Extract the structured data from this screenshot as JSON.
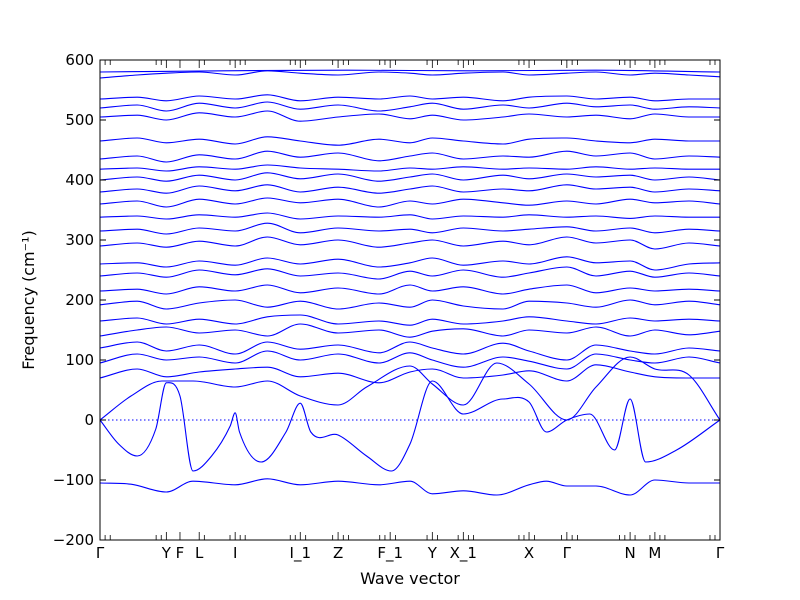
{
  "chart_data": {
    "type": "line",
    "title": "",
    "xlabel": "Wave vector",
    "ylabel": "Frequency (cm⁻¹)",
    "ylim": [
      -200,
      600
    ],
    "yticks": [
      -200,
      -100,
      0,
      100,
      200,
      300,
      400,
      500,
      600
    ],
    "grid": false,
    "legend": "none",
    "colors": {
      "band": "#0000ff",
      "zero_line": "#0000ff",
      "axes": "#000000"
    },
    "xlim": [
      0,
      1
    ],
    "high_symmetry_points": [
      {
        "label": "Γ",
        "x": 0.0
      },
      {
        "label": "Y",
        "x": 0.107
      },
      {
        "label": "F",
        "x": 0.129
      },
      {
        "label": "L",
        "x": 0.16
      },
      {
        "label": "I",
        "x": 0.218
      },
      {
        "label": "I_1",
        "x": 0.323
      },
      {
        "label": "Z",
        "x": 0.384
      },
      {
        "label": "F_1",
        "x": 0.468
      },
      {
        "label": "Y",
        "x": 0.536
      },
      {
        "label": "X_1",
        "x": 0.586
      },
      {
        "label": "X",
        "x": 0.692
      },
      {
        "label": "Γ",
        "x": 0.753
      },
      {
        "label": "N",
        "x": 0.855
      },
      {
        "label": "M",
        "x": 0.895
      },
      {
        "label": "Γ",
        "x": 1.0
      }
    ],
    "series": [
      {
        "x": [
          0,
          0.05,
          0.107,
          0.15,
          0.218,
          0.27,
          0.323,
          0.384,
          0.45,
          0.5,
          0.536,
          0.586,
          0.64,
          0.692,
          0.72,
          0.753,
          0.8,
          0.855,
          0.895,
          0.95,
          1.0
        ],
        "values": [
          -105,
          -107,
          -120,
          -102,
          -108,
          -98,
          -108,
          -102,
          -108,
          -102,
          -123,
          -118,
          -125,
          -108,
          -102,
          -110,
          -110,
          -125,
          -100,
          -105,
          -105
        ]
      },
      {
        "x": [
          0,
          0.03,
          0.06,
          0.09,
          0.107,
          0.129,
          0.15,
          0.18,
          0.21,
          0.218,
          0.225,
          0.26,
          0.3,
          0.323,
          0.34,
          0.384,
          0.43,
          0.47,
          0.5,
          0.536,
          0.586,
          0.65,
          0.692,
          0.72,
          0.753,
          0.79,
          0.83,
          0.855,
          0.88,
          0.93,
          1.0
        ],
        "values": [
          0,
          -40,
          -60,
          -15,
          62,
          40,
          -85,
          -60,
          -10,
          12,
          -20,
          -70,
          -20,
          28,
          -20,
          -25,
          -60,
          -85,
          -40,
          65,
          10,
          35,
          30,
          -20,
          0,
          10,
          -50,
          35,
          -70,
          -50,
          0
        ]
      },
      {
        "x": [
          0,
          0.05,
          0.1,
          0.15,
          0.218,
          0.27,
          0.323,
          0.384,
          0.43,
          0.5,
          0.536,
          0.586,
          0.64,
          0.692,
          0.753,
          0.8,
          0.855,
          0.895,
          0.95,
          1.0
        ],
        "values": [
          0,
          40,
          65,
          65,
          55,
          65,
          40,
          25,
          55,
          90,
          60,
          25,
          95,
          60,
          0,
          55,
          105,
          85,
          75,
          0
        ]
      },
      {
        "x": [
          0,
          0.06,
          0.107,
          0.16,
          0.218,
          0.27,
          0.323,
          0.384,
          0.45,
          0.5,
          0.536,
          0.586,
          0.65,
          0.692,
          0.753,
          0.8,
          0.855,
          0.895,
          0.95,
          1.0
        ],
        "values": [
          70,
          85,
          72,
          80,
          85,
          88,
          72,
          78,
          62,
          80,
          85,
          70,
          75,
          82,
          65,
          92,
          80,
          72,
          70,
          70
        ]
      },
      {
        "x": [
          0,
          0.06,
          0.107,
          0.16,
          0.218,
          0.27,
          0.323,
          0.384,
          0.45,
          0.5,
          0.536,
          0.586,
          0.65,
          0.692,
          0.753,
          0.8,
          0.855,
          0.895,
          0.95,
          1.0
        ],
        "values": [
          95,
          110,
          100,
          105,
          95,
          115,
          100,
          110,
          95,
          112,
          100,
          88,
          105,
          98,
          85,
          110,
          100,
          95,
          105,
          95
        ]
      },
      {
        "x": [
          0,
          0.06,
          0.107,
          0.16,
          0.218,
          0.27,
          0.323,
          0.384,
          0.45,
          0.5,
          0.536,
          0.586,
          0.65,
          0.692,
          0.753,
          0.8,
          0.855,
          0.895,
          0.95,
          1.0
        ],
        "values": [
          120,
          130,
          115,
          125,
          110,
          130,
          118,
          125,
          112,
          130,
          120,
          110,
          128,
          115,
          100,
          125,
          115,
          110,
          120,
          115
        ]
      },
      {
        "x": [
          0,
          0.06,
          0.107,
          0.16,
          0.218,
          0.27,
          0.323,
          0.384,
          0.45,
          0.5,
          0.536,
          0.586,
          0.65,
          0.692,
          0.753,
          0.8,
          0.855,
          0.895,
          0.95,
          1.0
        ],
        "values": [
          140,
          150,
          155,
          145,
          150,
          140,
          160,
          145,
          150,
          138,
          148,
          152,
          140,
          150,
          145,
          155,
          140,
          150,
          142,
          148
        ]
      },
      {
        "x": [
          0,
          0.06,
          0.107,
          0.16,
          0.218,
          0.27,
          0.323,
          0.384,
          0.45,
          0.5,
          0.536,
          0.586,
          0.65,
          0.692,
          0.753,
          0.8,
          0.855,
          0.895,
          0.95,
          1.0
        ],
        "values": [
          165,
          170,
          160,
          168,
          160,
          172,
          175,
          160,
          165,
          158,
          168,
          160,
          165,
          172,
          165,
          160,
          170,
          165,
          168,
          165
        ]
      },
      {
        "x": [
          0,
          0.06,
          0.107,
          0.16,
          0.218,
          0.27,
          0.323,
          0.384,
          0.45,
          0.5,
          0.536,
          0.586,
          0.65,
          0.692,
          0.753,
          0.8,
          0.855,
          0.895,
          0.95,
          1.0
        ],
        "values": [
          192,
          198,
          185,
          195,
          200,
          188,
          198,
          185,
          195,
          188,
          200,
          190,
          185,
          198,
          195,
          188,
          200,
          192,
          198,
          192
        ]
      },
      {
        "x": [
          0,
          0.06,
          0.107,
          0.16,
          0.218,
          0.27,
          0.323,
          0.384,
          0.45,
          0.5,
          0.536,
          0.586,
          0.65,
          0.692,
          0.753,
          0.8,
          0.855,
          0.895,
          0.95,
          1.0
        ],
        "values": [
          215,
          218,
          210,
          222,
          215,
          225,
          212,
          220,
          210,
          225,
          215,
          222,
          210,
          218,
          225,
          212,
          220,
          215,
          218,
          215
        ]
      },
      {
        "x": [
          0,
          0.06,
          0.107,
          0.16,
          0.218,
          0.27,
          0.323,
          0.384,
          0.45,
          0.5,
          0.536,
          0.586,
          0.65,
          0.692,
          0.753,
          0.8,
          0.855,
          0.895,
          0.95,
          1.0
        ],
        "values": [
          240,
          245,
          238,
          250,
          242,
          252,
          240,
          245,
          235,
          248,
          240,
          250,
          238,
          245,
          255,
          240,
          248,
          238,
          245,
          240
        ]
      },
      {
        "x": [
          0,
          0.06,
          0.107,
          0.16,
          0.218,
          0.27,
          0.323,
          0.384,
          0.45,
          0.5,
          0.536,
          0.586,
          0.65,
          0.692,
          0.753,
          0.8,
          0.855,
          0.895,
          0.95,
          1.0
        ],
        "values": [
          260,
          262,
          255,
          265,
          258,
          270,
          260,
          268,
          255,
          262,
          270,
          258,
          265,
          260,
          272,
          262,
          265,
          250,
          260,
          262
        ]
      },
      {
        "x": [
          0,
          0.06,
          0.107,
          0.16,
          0.218,
          0.27,
          0.323,
          0.384,
          0.45,
          0.5,
          0.536,
          0.586,
          0.65,
          0.692,
          0.753,
          0.8,
          0.855,
          0.895,
          0.95,
          1.0
        ],
        "values": [
          290,
          295,
          288,
          298,
          290,
          305,
          292,
          300,
          288,
          295,
          300,
          290,
          298,
          292,
          305,
          295,
          300,
          285,
          295,
          290
        ]
      },
      {
        "x": [
          0,
          0.06,
          0.107,
          0.16,
          0.218,
          0.27,
          0.323,
          0.384,
          0.45,
          0.5,
          0.536,
          0.586,
          0.65,
          0.692,
          0.753,
          0.8,
          0.855,
          0.895,
          0.95,
          1.0
        ],
        "values": [
          315,
          318,
          310,
          320,
          315,
          328,
          312,
          320,
          315,
          318,
          312,
          320,
          315,
          318,
          322,
          315,
          320,
          312,
          318,
          315
        ]
      },
      {
        "x": [
          0,
          0.06,
          0.107,
          0.16,
          0.218,
          0.27,
          0.323,
          0.384,
          0.45,
          0.5,
          0.536,
          0.586,
          0.65,
          0.692,
          0.753,
          0.8,
          0.855,
          0.895,
          0.95,
          1.0
        ],
        "values": [
          338,
          340,
          335,
          342,
          338,
          345,
          335,
          340,
          338,
          342,
          335,
          340,
          338,
          342,
          338,
          340,
          336,
          340,
          338,
          338
        ]
      },
      {
        "x": [
          0,
          0.06,
          0.107,
          0.16,
          0.218,
          0.27,
          0.323,
          0.384,
          0.45,
          0.5,
          0.536,
          0.586,
          0.65,
          0.692,
          0.753,
          0.8,
          0.855,
          0.895,
          0.95,
          1.0
        ],
        "values": [
          360,
          365,
          355,
          368,
          360,
          370,
          362,
          368,
          355,
          365,
          360,
          368,
          362,
          358,
          365,
          360,
          368,
          362,
          365,
          360
        ]
      },
      {
        "x": [
          0,
          0.06,
          0.107,
          0.16,
          0.218,
          0.27,
          0.323,
          0.384,
          0.45,
          0.5,
          0.536,
          0.586,
          0.65,
          0.692,
          0.753,
          0.8,
          0.855,
          0.895,
          0.95,
          1.0
        ],
        "values": [
          380,
          385,
          378,
          390,
          382,
          392,
          380,
          388,
          378,
          385,
          390,
          380,
          385,
          382,
          392,
          385,
          388,
          380,
          385,
          382
        ]
      },
      {
        "x": [
          0,
          0.06,
          0.107,
          0.16,
          0.218,
          0.27,
          0.323,
          0.384,
          0.45,
          0.5,
          0.536,
          0.586,
          0.65,
          0.692,
          0.753,
          0.8,
          0.855,
          0.895,
          0.95,
          1.0
        ],
        "values": [
          400,
          405,
          398,
          408,
          400,
          412,
          402,
          410,
          398,
          405,
          410,
          400,
          408,
          402,
          410,
          405,
          408,
          400,
          405,
          400
        ]
      },
      {
        "x": [
          0,
          0.06,
          0.107,
          0.16,
          0.218,
          0.27,
          0.323,
          0.384,
          0.45,
          0.5,
          0.536,
          0.586,
          0.65,
          0.692,
          0.753,
          0.8,
          0.855,
          0.895,
          0.95,
          1.0
        ],
        "values": [
          418,
          420,
          415,
          422,
          418,
          425,
          420,
          418,
          415,
          420,
          418,
          422,
          418,
          420,
          418,
          422,
          418,
          420,
          418,
          418
        ]
      },
      {
        "x": [
          0,
          0.06,
          0.107,
          0.16,
          0.218,
          0.27,
          0.323,
          0.384,
          0.45,
          0.5,
          0.536,
          0.586,
          0.65,
          0.692,
          0.753,
          0.8,
          0.855,
          0.895,
          0.95,
          1.0
        ],
        "values": [
          435,
          440,
          430,
          442,
          435,
          448,
          438,
          445,
          432,
          440,
          445,
          435,
          440,
          438,
          448,
          440,
          445,
          435,
          440,
          438
        ]
      },
      {
        "x": [
          0,
          0.06,
          0.107,
          0.16,
          0.218,
          0.27,
          0.323,
          0.384,
          0.45,
          0.5,
          0.536,
          0.586,
          0.65,
          0.692,
          0.753,
          0.8,
          0.855,
          0.895,
          0.95,
          1.0
        ],
        "values": [
          465,
          470,
          462,
          468,
          460,
          472,
          465,
          458,
          468,
          462,
          470,
          465,
          460,
          468,
          470,
          465,
          462,
          468,
          465,
          465
        ]
      },
      {
        "x": [
          0,
          0.06,
          0.107,
          0.16,
          0.218,
          0.27,
          0.323,
          0.384,
          0.45,
          0.5,
          0.536,
          0.586,
          0.65,
          0.692,
          0.753,
          0.8,
          0.855,
          0.895,
          0.95,
          1.0
        ],
        "values": [
          505,
          508,
          500,
          512,
          505,
          515,
          498,
          505,
          510,
          502,
          508,
          500,
          505,
          510,
          505,
          508,
          502,
          510,
          505,
          505
        ]
      },
      {
        "x": [
          0,
          0.06,
          0.107,
          0.16,
          0.218,
          0.27,
          0.323,
          0.384,
          0.45,
          0.5,
          0.536,
          0.586,
          0.65,
          0.692,
          0.753,
          0.8,
          0.855,
          0.895,
          0.95,
          1.0
        ],
        "values": [
          520,
          525,
          515,
          528,
          520,
          530,
          518,
          525,
          515,
          522,
          528,
          518,
          525,
          520,
          528,
          522,
          525,
          518,
          522,
          520
        ]
      },
      {
        "x": [
          0,
          0.06,
          0.107,
          0.16,
          0.218,
          0.27,
          0.323,
          0.384,
          0.45,
          0.5,
          0.536,
          0.586,
          0.65,
          0.692,
          0.753,
          0.8,
          0.855,
          0.895,
          0.95,
          1.0
        ],
        "values": [
          535,
          538,
          532,
          540,
          535,
          542,
          532,
          538,
          535,
          540,
          535,
          538,
          532,
          538,
          540,
          535,
          538,
          532,
          535,
          535
        ]
      },
      {
        "x": [
          0,
          0.06,
          0.107,
          0.16,
          0.218,
          0.27,
          0.323,
          0.384,
          0.45,
          0.5,
          0.536,
          0.586,
          0.65,
          0.692,
          0.753,
          0.8,
          0.855,
          0.895,
          0.95,
          1.0
        ],
        "values": [
          570,
          575,
          578,
          580,
          575,
          582,
          578,
          575,
          580,
          578,
          575,
          578,
          580,
          575,
          578,
          580,
          575,
          578,
          575,
          572
        ]
      },
      {
        "x": [
          0,
          0.2,
          0.4,
          0.6,
          0.8,
          1.0
        ],
        "values": [
          580,
          582,
          583,
          582,
          583,
          580
        ]
      }
    ]
  }
}
